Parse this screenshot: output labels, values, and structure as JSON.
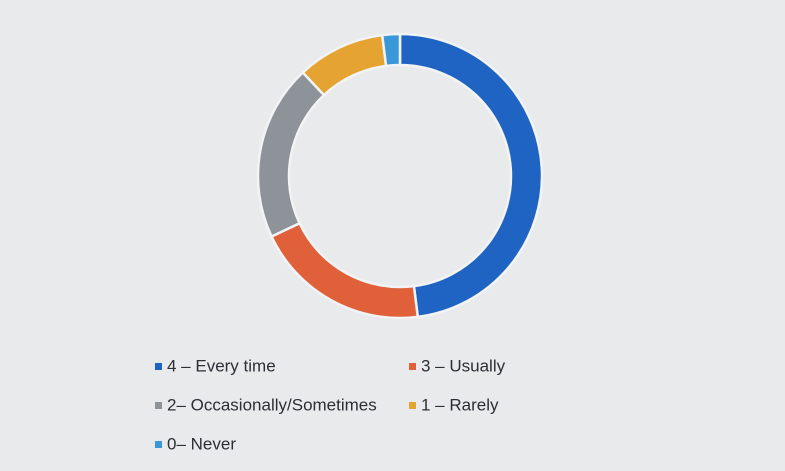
{
  "chart_data": {
    "type": "donut",
    "categories": [
      "4 – Every time",
      "3 – Usually",
      "2– Occasionally/Sometimes",
      "1 – Rarely",
      "0– Never"
    ],
    "values": [
      48,
      20,
      20,
      10,
      2
    ],
    "colors": [
      "#1f64c3",
      "#e0603a",
      "#8e9299",
      "#e5a431",
      "#3a98d8"
    ],
    "legend": "bottom"
  }
}
